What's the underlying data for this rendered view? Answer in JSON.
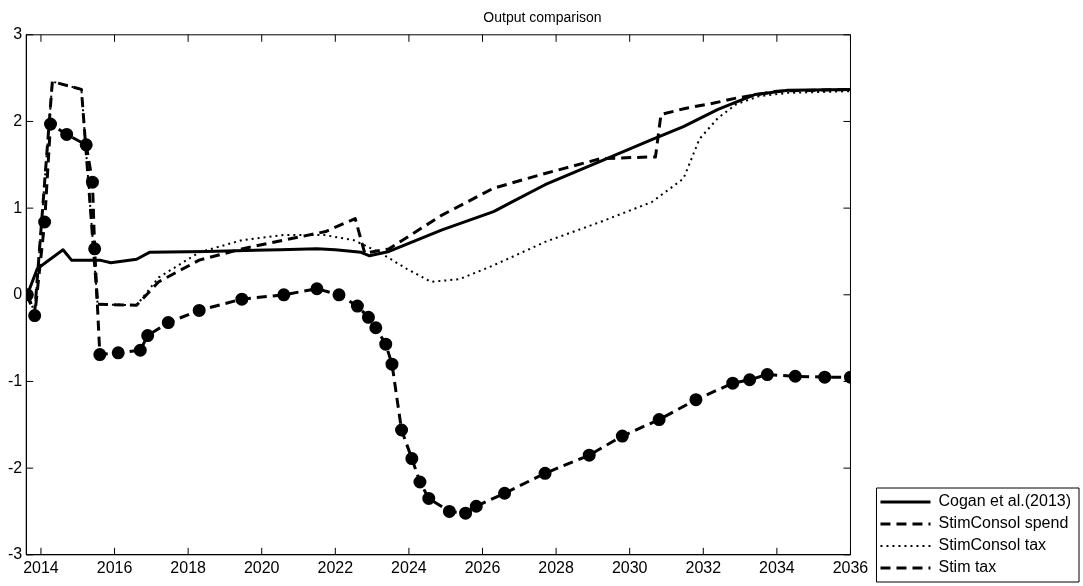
{
  "chart_data": {
    "type": "line",
    "title": "Output comparison",
    "xlim": [
      2013.6,
      2036
    ],
    "xticks": [
      2014,
      2016,
      2018,
      2020,
      2022,
      2024,
      2026,
      2028,
      2030,
      2032,
      2034,
      2036
    ],
    "ylim": [
      -3,
      3
    ],
    "yticks": [
      -3,
      -2,
      -1,
      0,
      1,
      2,
      3
    ],
    "grid": false,
    "legend": "bottom right",
    "series": [
      {
        "name": "Cogan et al.(2013)",
        "color": "#000000",
        "line_style": "solid",
        "marker": "none",
        "x": [
          2013.63,
          2013.9,
          2014.6,
          2014.83,
          2015.6,
          2015.9,
          2016.6,
          2016.95,
          2018.5,
          2020.5,
          2021.5,
          2022.0,
          2022.7,
          2022.93,
          2023.46,
          2024.9,
          2026.3,
          2027.7,
          2029.2,
          2030.6,
          2031.46,
          2032.4,
          2033.4,
          2034.3,
          2036
        ],
        "values": [
          0,
          0.3,
          0.52,
          0.4,
          0.4,
          0.37,
          0.41,
          0.49,
          0.5,
          0.52,
          0.53,
          0.52,
          0.49,
          0.45,
          0.5,
          0.75,
          0.96,
          1.27,
          1.54,
          1.79,
          1.94,
          2.14,
          2.31,
          2.36,
          2.37
        ]
      },
      {
        "name": "StimConsol spend",
        "color": "#000000",
        "line_style": "dashed",
        "marker": "none",
        "x": [
          2013.63,
          2013.83,
          2014.31,
          2015.1,
          2015.54,
          2016.6,
          2017.2,
          2018.3,
          2019.46,
          2020.6,
          2021.74,
          2022.54,
          2022.8,
          2023.46,
          2024.9,
          2026.3,
          2027.7,
          2029.2,
          2030.5,
          2030.7,
          2030.85,
          2031.5,
          2032.26,
          2032.9,
          2034,
          2036
        ],
        "values": [
          0,
          -0.2,
          2.46,
          2.37,
          -0.11,
          -0.12,
          0.15,
          0.4,
          0.53,
          0.63,
          0.73,
          0.88,
          0.48,
          0.53,
          0.92,
          1.23,
          1.4,
          1.57,
          1.59,
          1.59,
          2.08,
          2.15,
          2.21,
          2.27,
          2.35,
          2.37
        ]
      },
      {
        "name": "StimConsol tax",
        "color": "#000000",
        "line_style": "dotted",
        "marker": "none",
        "x": [
          2013.63,
          2013.83,
          2014.31,
          2015.1,
          2015.54,
          2016.6,
          2017.2,
          2018.3,
          2019.46,
          2020.6,
          2021.7,
          2022.5,
          2023.2,
          2023.94,
          2024.6,
          2025.37,
          2026.3,
          2027.7,
          2029.2,
          2030.6,
          2031.46,
          2031.9,
          2032.4,
          2032.9,
          2033.5,
          2034.3,
          2036
        ],
        "values": [
          0,
          -0.2,
          2.46,
          2.37,
          -0.11,
          -0.12,
          0.2,
          0.49,
          0.63,
          0.69,
          0.69,
          0.63,
          0.49,
          0.3,
          0.15,
          0.18,
          0.34,
          0.61,
          0.84,
          1.07,
          1.34,
          1.8,
          2.04,
          2.2,
          2.29,
          2.33,
          2.35
        ]
      },
      {
        "name": "Stim tax",
        "color": "#000000",
        "line_style": "dashed",
        "marker": "circle",
        "x": [
          2013.63,
          2013.83,
          2014.1,
          2014.26,
          2014.7,
          2015.23,
          2015.4,
          2015.46,
          2015.6,
          2016.1,
          2016.7,
          2016.9,
          2017.46,
          2018.3,
          2019.46,
          2020.6,
          2021.5,
          2022.1,
          2022.6,
          2022.9,
          2023.1,
          2023.37,
          2023.54,
          2023.8,
          2024.08,
          2024.3,
          2024.54,
          2025.1,
          2025.54,
          2025.83,
          2026.6,
          2027.7,
          2028.9,
          2029.8,
          2030.8,
          2031.8,
          2032.8,
          2033.26,
          2033.74,
          2034.5,
          2035.3,
          2036
        ],
        "values": [
          0,
          -0.24,
          0.84,
          1.97,
          1.85,
          1.73,
          1.3,
          0.53,
          -0.69,
          -0.67,
          -0.64,
          -0.47,
          -0.32,
          -0.18,
          -0.05,
          0,
          0.07,
          0,
          -0.13,
          -0.26,
          -0.38,
          -0.57,
          -0.8,
          -1.56,
          -1.89,
          -2.16,
          -2.35,
          -2.5,
          -2.52,
          -2.44,
          -2.29,
          -2.06,
          -1.85,
          -1.63,
          -1.44,
          -1.21,
          -1.02,
          -0.98,
          -0.92,
          -0.94,
          -0.95,
          -0.95
        ]
      }
    ]
  }
}
